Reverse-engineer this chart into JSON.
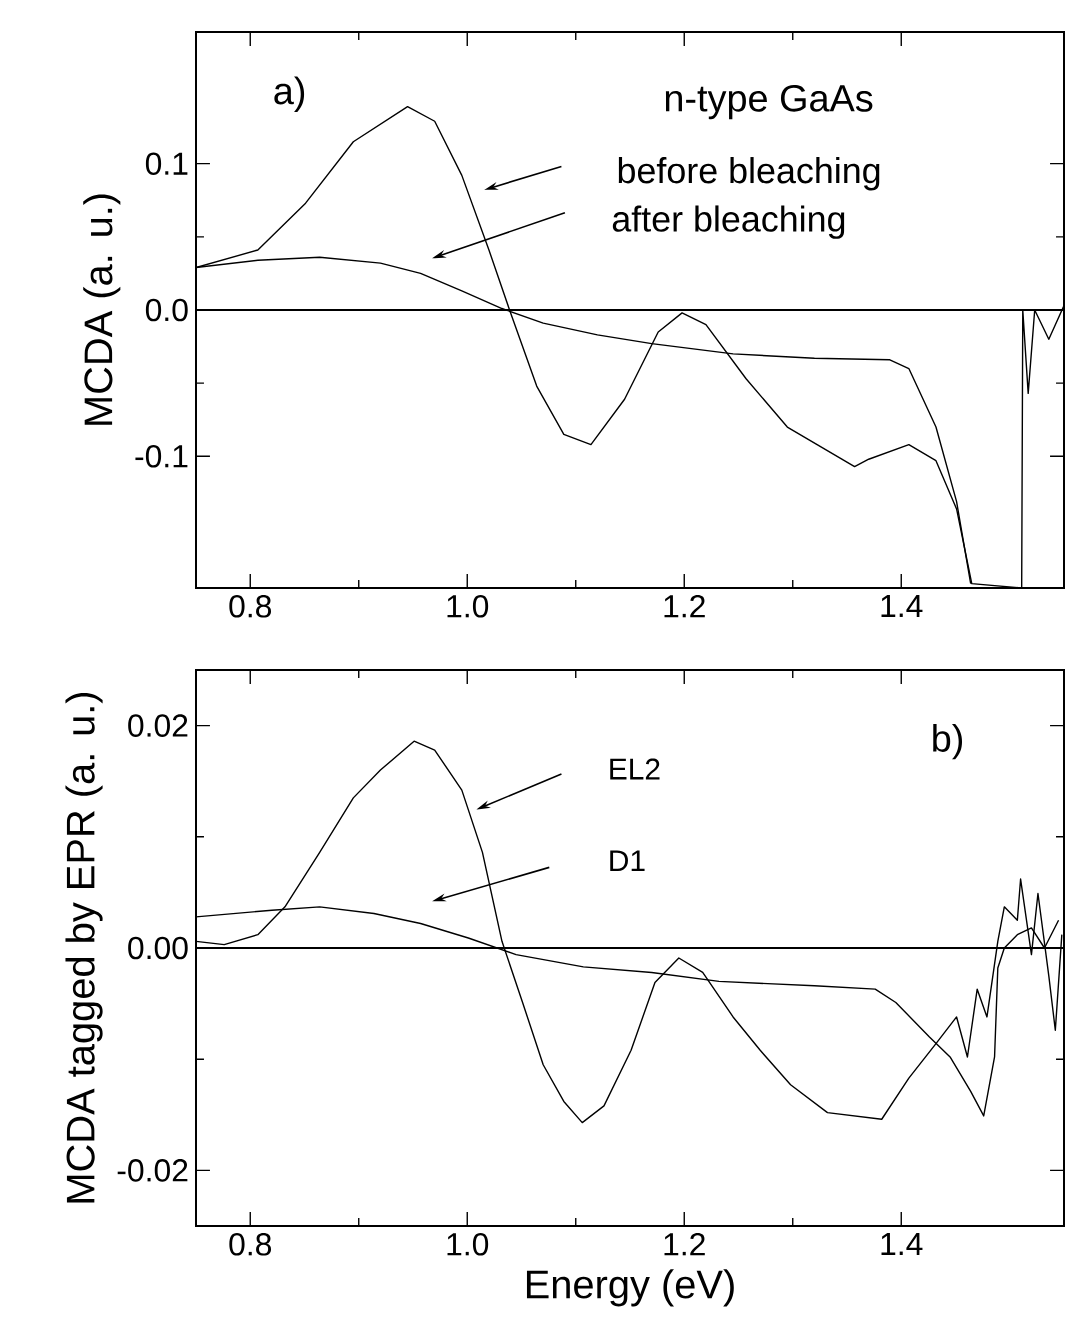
{
  "chart_data": [
    {
      "type": "line",
      "ylabel": "MCDA (a. u.)",
      "annotations": [
        "a)",
        "n-type GaAs",
        "before bleaching",
        "after bleaching"
      ],
      "xlim": [
        0.75,
        1.55
      ],
      "ylim": [
        -0.19,
        0.19
      ],
      "xticks": [
        0.8,
        {
          "value": 1.0,
          "label": "1.0"
        },
        1.2,
        1.4
      ],
      "yticks": [
        -0.1,
        {
          "value": 0,
          "label": "0.0"
        },
        0.1
      ],
      "ref_lines": [
        {
          "axis": "y",
          "value": 0,
          "color": "#000000"
        }
      ],
      "marker": "none",
      "line_style": "solid",
      "grid": false,
      "series": [
        {
          "color": "#000000",
          "x": [
            0.75,
            0.807,
            0.851,
            0.895,
            0.945,
            0.97,
            0.995,
            1.02,
            1.039,
            1.064,
            1.089,
            1.114,
            1.145,
            1.176,
            1.198,
            1.22,
            1.257,
            1.295,
            1.357,
            1.37,
            1.407,
            1.432,
            1.451,
            1.465,
            1.511,
            1.512,
            1.517,
            1.523,
            1.536,
            1.55
          ],
          "values": [
            0.029,
            0.041,
            0.073,
            0.115,
            0.139,
            0.129,
            0.092,
            0.041,
            0.0,
            -0.052,
            -0.085,
            -0.092,
            -0.061,
            -0.015,
            -0.002,
            -0.01,
            -0.047,
            -0.08,
            -0.107,
            -0.102,
            -0.092,
            -0.103,
            -0.136,
            -0.187,
            -0.19,
            0.0,
            -0.057,
            0.0,
            -0.02,
            0.003
          ]
        },
        {
          "color": "#000000",
          "x": [
            0.75,
            0.807,
            0.864,
            0.92,
            0.957,
            0.995,
            1.032,
            1.07,
            1.12,
            1.17,
            1.245,
            1.32,
            1.389,
            1.407,
            1.432,
            1.451,
            1.464
          ],
          "values": [
            0.029,
            0.034,
            0.036,
            0.032,
            0.025,
            0.013,
            0.001,
            -0.009,
            -0.017,
            -0.023,
            -0.03,
            -0.033,
            -0.034,
            -0.04,
            -0.08,
            -0.131,
            -0.187
          ]
        }
      ]
    },
    {
      "type": "line",
      "xlabel": "Energy (eV)",
      "ylabel": "MCDA tagged by EPR (a. u.)",
      "annotations": [
        "b)",
        "EL2",
        "D1"
      ],
      "xlim": [
        0.75,
        1.55
      ],
      "ylim": [
        -0.025,
        0.025
      ],
      "xticks": [
        0.8,
        {
          "value": 1.0,
          "label": "1.0"
        },
        1.2,
        1.4
      ],
      "yticks": [
        -0.02,
        {
          "value": 0,
          "label": "0.00"
        },
        0.02
      ],
      "ref_lines": [
        {
          "axis": "y",
          "value": 0,
          "color": "#000000"
        }
      ],
      "marker": "none",
      "line_style": "solid",
      "grid": false,
      "series": [
        {
          "color": "#000000",
          "x": [
            0.75,
            0.776,
            0.807,
            0.832,
            0.864,
            0.895,
            0.92,
            0.951,
            0.97,
            0.995,
            1.014,
            1.032,
            1.051,
            1.07,
            1.089,
            1.106,
            1.126,
            1.151,
            1.173,
            1.195,
            1.217,
            1.245,
            1.27,
            1.298,
            1.332,
            1.357,
            1.382,
            1.407,
            1.432,
            1.451,
            1.461,
            1.47,
            1.479,
            1.489,
            1.495,
            1.507,
            1.51,
            1.52,
            1.526,
            1.536,
            1.542,
            1.548
          ],
          "values": [
            0.0006,
            0.0003,
            0.0012,
            0.0037,
            0.0086,
            0.0135,
            0.016,
            0.0186,
            0.0178,
            0.0142,
            0.0086,
            0.0006,
            -0.0049,
            -0.0105,
            -0.0138,
            -0.0157,
            -0.0142,
            -0.0092,
            -0.0031,
            -0.0009,
            -0.0022,
            -0.0062,
            -0.0092,
            -0.0123,
            -0.0148,
            -0.0151,
            -0.0154,
            -0.0117,
            -0.0086,
            -0.0062,
            -0.0098,
            -0.0037,
            -0.0062,
            0.0006,
            0.0037,
            0.0025,
            0.0062,
            -0.0006,
            0.0049,
            -0.0025,
            -0.0074,
            0.0012
          ]
        },
        {
          "color": "#000000",
          "x": [
            0.75,
            0.82,
            0.864,
            0.914,
            0.957,
            1.001,
            1.045,
            1.107,
            1.17,
            1.232,
            1.32,
            1.376,
            1.395,
            1.426,
            1.445,
            1.464,
            1.476,
            1.486,
            1.489,
            1.495,
            1.507,
            1.52,
            1.532,
            1.545
          ],
          "values": [
            0.0028,
            0.0034,
            0.0037,
            0.0031,
            0.0022,
            0.0009,
            -0.0006,
            -0.0017,
            -0.0022,
            -0.003,
            -0.0034,
            -0.0037,
            -0.0049,
            -0.008,
            -0.0098,
            -0.0129,
            -0.0151,
            -0.0098,
            -0.0018,
            0.0,
            0.0012,
            0.0018,
            0.0,
            0.0025
          ]
        }
      ]
    }
  ]
}
